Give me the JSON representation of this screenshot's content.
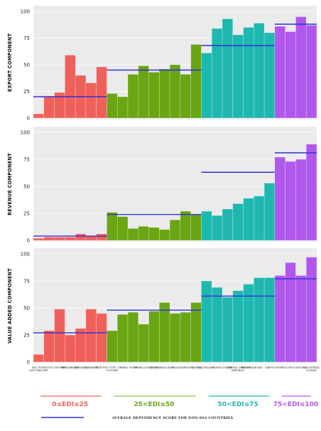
{
  "chart_data": {
    "type": "bar",
    "countries": [
      "SAO TOME AND PRINCIPE",
      "TOGO",
      "LESOTHO",
      "MOZAMBIQUE",
      "TANZANIA",
      "ZIMBABWE",
      "BURUNDI",
      "COTE D'IVOIRE",
      "LIBERIA",
      "NIGER",
      "SIERRA LEONE",
      "GHANA",
      "BURKINA FASO",
      "MALI",
      "CAMEROON",
      "ZAMBIA",
      "MAURITANIA",
      "GUINEA",
      "SUDAN",
      "CENTRAL AFRICAN REPUBLIC",
      "BOTSWANA",
      "CHAD",
      "GABON",
      "NIGERIA",
      "CONGO",
      "ANGOLA",
      "EQUATORIAL GUINEA"
    ],
    "groups": [
      {
        "label": "0≤EDI≤25",
        "start": 0,
        "end": 6,
        "color": "#f0605a",
        "line_color": "#f0605a"
      },
      {
        "label": "25<EDI≤50",
        "start": 7,
        "end": 15,
        "color": "#6aa514",
        "line_color": "#8ac23a"
      },
      {
        "label": "50<EDI≤75",
        "start": 16,
        "end": 22,
        "color": "#1fb8b0",
        "line_color": "#1fb8b0"
      },
      {
        "label": "75<EDI≤100",
        "start": 23,
        "end": 26,
        "color": "#b158ec",
        "line_color": "#b158ec"
      }
    ],
    "panels": [
      {
        "ylabel": "EXPORT COMPONENT",
        "ylim": [
          0,
          100
        ],
        "ticks": [
          "0",
          "25",
          "50",
          "75",
          "100"
        ],
        "values": [
          4,
          20,
          24,
          59,
          40,
          33,
          48,
          23,
          20,
          41,
          49,
          43,
          46,
          50,
          41,
          69,
          61,
          84,
          93,
          78,
          85,
          89,
          80,
          86,
          81,
          95,
          87
        ],
        "group_averages": [
          20,
          45,
          68,
          88
        ]
      },
      {
        "ylabel": "REVENUE COMPONENT",
        "ylim": [
          0,
          100
        ],
        "ticks": [
          "0",
          "25",
          "50",
          "75",
          "100"
        ],
        "values": [
          2,
          3,
          3,
          3,
          6,
          4,
          6,
          26,
          22,
          11,
          13,
          12,
          10,
          19,
          27,
          24,
          27,
          23,
          29,
          34,
          39,
          41,
          53,
          77,
          73,
          75,
          89
        ],
        "group_averages": [
          4,
          24,
          63,
          81
        ]
      },
      {
        "ylabel": "VALUE ADDED COMPONENT",
        "ylim": [
          0,
          100
        ],
        "ticks": [
          "0",
          "25",
          "50",
          "75",
          "100"
        ],
        "values": [
          7,
          29,
          49,
          25,
          31,
          49,
          45,
          29,
          44,
          46,
          35,
          47,
          55,
          45,
          46,
          55,
          75,
          69,
          60,
          66,
          72,
          78,
          78,
          80,
          92,
          80,
          97
        ],
        "group_averages": [
          27,
          48,
          61,
          77
        ]
      }
    ],
    "legend": {
      "line_label": "AVERAGE DEPENDENCE SCORE FOR NON-SSA COUNTRIES",
      "line_color": "#2f2fd8"
    },
    "grid": true
  }
}
